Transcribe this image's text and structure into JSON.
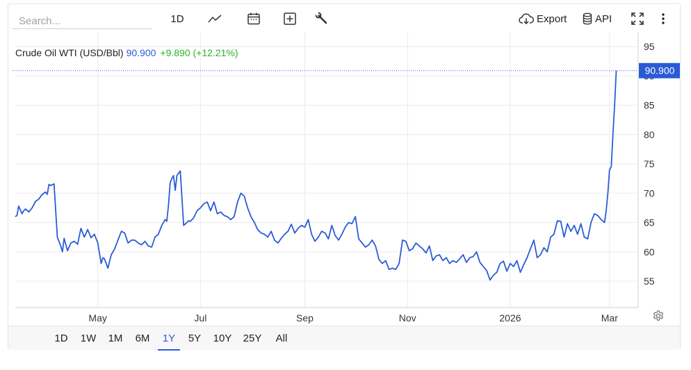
{
  "toolbar": {
    "search_placeholder": "Search...",
    "interval_label": "1D",
    "export_label": "Export",
    "api_label": "API"
  },
  "legend": {
    "name": "Crude Oil WTI (USD/Bbl)",
    "price": "90.900",
    "change": "+9.890 (+12.21%)"
  },
  "price_tag": "90.900",
  "ranges": [
    "1D",
    "1W",
    "1M",
    "6M",
    "1Y",
    "5Y",
    "10Y",
    "25Y",
    "All"
  ],
  "active_range": "1Y",
  "colors": {
    "line": "#2a5bd7",
    "up": "#2bb22b",
    "grid": "#ebebeb"
  },
  "chart_data": {
    "type": "line",
    "title": "",
    "xlabel": "",
    "ylabel": "",
    "y_axis_side": "right",
    "ylim": [
      50.5,
      97.5
    ],
    "yticks": [
      55,
      60,
      65,
      70,
      75,
      80,
      85,
      90,
      95
    ],
    "xlim": [
      "2025-03-13",
      "2026-03-18"
    ],
    "xticks": [
      {
        "label": "May",
        "date": "2025-05-01"
      },
      {
        "label": "Jul",
        "date": "2025-07-01"
      },
      {
        "label": "Sep",
        "date": "2025-09-01"
      },
      {
        "label": "Nov",
        "date": "2025-11-01"
      },
      {
        "label": "2026",
        "date": "2026-01-01"
      },
      {
        "label": "Mar",
        "date": "2026-03-01"
      }
    ],
    "grid": true,
    "series": [
      {
        "x": [
          "2025-03-13",
          "2025-03-14",
          "2025-03-15",
          "2025-03-17",
          "2025-03-18",
          "2025-03-19",
          "2025-03-21",
          "2025-03-23",
          "2025-03-25",
          "2025-03-27",
          "2025-03-29",
          "2025-03-31",
          "2025-04-01",
          "2025-04-02",
          "2025-04-03",
          "2025-04-05",
          "2025-04-07",
          "2025-04-09",
          "2025-04-10",
          "2025-04-11",
          "2025-04-13",
          "2025-04-15",
          "2025-04-17",
          "2025-04-19",
          "2025-04-21",
          "2025-04-23",
          "2025-04-25",
          "2025-04-27",
          "2025-04-29",
          "2025-05-01",
          "2025-05-03",
          "2025-05-04",
          "2025-05-05",
          "2025-05-07",
          "2025-05-09",
          "2025-05-11",
          "2025-05-13",
          "2025-05-15",
          "2025-05-17",
          "2025-05-19",
          "2025-05-21",
          "2025-05-23",
          "2025-05-25",
          "2025-05-27",
          "2025-05-29",
          "2025-05-31",
          "2025-06-02",
          "2025-06-04",
          "2025-06-06",
          "2025-06-08",
          "2025-06-10",
          "2025-06-11",
          "2025-06-12",
          "2025-06-13",
          "2025-06-14",
          "2025-06-15",
          "2025-06-16",
          "2025-06-17",
          "2025-06-19",
          "2025-06-21",
          "2025-06-23",
          "2025-06-24",
          "2025-06-25",
          "2025-06-27",
          "2025-06-29",
          "2025-07-01",
          "2025-07-03",
          "2025-07-05",
          "2025-07-07",
          "2025-07-09",
          "2025-07-11",
          "2025-07-13",
          "2025-07-15",
          "2025-07-17",
          "2025-07-19",
          "2025-07-21",
          "2025-07-23",
          "2025-07-25",
          "2025-07-27",
          "2025-07-29",
          "2025-07-31",
          "2025-08-02",
          "2025-08-04",
          "2025-08-06",
          "2025-08-08",
          "2025-08-10",
          "2025-08-12",
          "2025-08-14",
          "2025-08-16",
          "2025-08-18",
          "2025-08-20",
          "2025-08-22",
          "2025-08-24",
          "2025-08-26",
          "2025-08-28",
          "2025-08-30",
          "2025-09-01",
          "2025-09-03",
          "2025-09-05",
          "2025-09-07",
          "2025-09-09",
          "2025-09-11",
          "2025-09-13",
          "2025-09-15",
          "2025-09-17",
          "2025-09-19",
          "2025-09-21",
          "2025-09-23",
          "2025-09-25",
          "2025-09-27",
          "2025-09-29",
          "2025-10-01",
          "2025-10-03",
          "2025-10-05",
          "2025-10-07",
          "2025-10-09",
          "2025-10-11",
          "2025-10-13",
          "2025-10-15",
          "2025-10-17",
          "2025-10-19",
          "2025-10-21",
          "2025-10-23",
          "2025-10-25",
          "2025-10-27",
          "2025-10-29",
          "2025-10-31",
          "2025-11-02",
          "2025-11-04",
          "2025-11-06",
          "2025-11-08",
          "2025-11-10",
          "2025-11-12",
          "2025-11-14",
          "2025-11-16",
          "2025-11-18",
          "2025-11-20",
          "2025-11-22",
          "2025-11-24",
          "2025-11-26",
          "2025-11-28",
          "2025-11-30",
          "2025-12-02",
          "2025-12-04",
          "2025-12-06",
          "2025-12-08",
          "2025-12-10",
          "2025-12-12",
          "2025-12-14",
          "2025-12-16",
          "2025-12-18",
          "2025-12-20",
          "2025-12-22",
          "2025-12-24",
          "2025-12-26",
          "2025-12-28",
          "2025-12-30",
          "2026-01-01",
          "2026-01-03",
          "2026-01-05",
          "2026-01-07",
          "2026-01-09",
          "2026-01-11",
          "2026-01-13",
          "2026-01-15",
          "2026-01-17",
          "2026-01-19",
          "2026-01-21",
          "2026-01-23",
          "2026-01-25",
          "2026-01-27",
          "2026-01-29",
          "2026-01-31",
          "2026-02-02",
          "2026-02-04",
          "2026-02-06",
          "2026-02-08",
          "2026-02-10",
          "2026-02-12",
          "2026-02-14",
          "2026-02-16",
          "2026-02-18",
          "2026-02-20",
          "2026-02-22",
          "2026-02-24",
          "2026-02-26",
          "2026-02-27",
          "2026-02-28",
          "2026-03-01",
          "2026-03-02",
          "2026-03-03",
          "2026-03-04",
          "2026-03-05"
        ],
        "values": [
          66.0,
          66.2,
          67.8,
          66.5,
          67.0,
          67.3,
          66.8,
          67.5,
          68.6,
          69.0,
          69.8,
          70.2,
          69.8,
          71.5,
          71.3,
          71.6,
          62.5,
          61.0,
          60.0,
          62.3,
          60.2,
          61.5,
          61.8,
          61.3,
          64.0,
          62.5,
          63.8,
          62.4,
          63.0,
          61.5,
          58.0,
          59.0,
          58.8,
          57.2,
          59.5,
          60.5,
          62.0,
          63.5,
          63.2,
          61.5,
          62.0,
          62.0,
          61.5,
          61.2,
          61.8,
          61.0,
          60.8,
          62.5,
          63.0,
          64.5,
          65.5,
          65.2,
          68.0,
          71.8,
          72.5,
          73.0,
          70.5,
          73.0,
          73.8,
          64.5,
          65.0,
          65.3,
          65.2,
          65.8,
          67.0,
          67.5,
          68.2,
          68.5,
          67.0,
          68.5,
          66.5,
          66.8,
          66.2,
          66.0,
          65.5,
          66.0,
          68.5,
          70.0,
          69.5,
          67.5,
          66.0,
          65.0,
          63.8,
          63.2,
          63.0,
          62.5,
          63.5,
          62.0,
          61.5,
          62.3,
          63.0,
          63.5,
          64.7,
          63.2,
          64.0,
          64.5,
          64.2,
          65.5,
          63.0,
          61.8,
          62.5,
          63.5,
          63.2,
          62.2,
          64.5,
          62.8,
          62.0,
          63.0,
          64.2,
          65.0,
          64.8,
          66.0,
          62.2,
          61.5,
          60.8,
          61.2,
          62.0,
          61.0,
          58.7,
          58.0,
          58.5,
          57.0,
          57.2,
          57.0,
          58.0,
          62.0,
          61.8,
          60.2,
          60.5,
          61.5,
          61.0,
          60.5,
          59.8,
          61.0,
          58.5,
          59.3,
          59.5,
          58.5,
          59.0,
          58.0,
          58.5,
          58.2,
          58.8,
          59.5,
          58.2,
          59.0,
          59.2,
          60.0,
          58.2,
          57.5,
          56.8,
          55.2,
          56.0,
          56.5,
          58.0,
          58.4,
          56.7,
          58.0,
          57.5,
          58.5,
          56.5,
          57.8,
          59.0,
          60.5,
          62.0,
          59.0,
          59.5,
          60.7,
          60.0,
          62.5,
          63.0,
          65.3,
          65.2,
          62.5,
          64.8,
          63.5,
          64.5,
          63.0,
          64.8,
          62.5,
          62.2,
          65.0,
          66.5,
          66.2,
          65.5,
          65.0,
          67.0,
          70.0,
          74.0,
          74.5,
          80.0,
          85.0,
          90.9
        ]
      }
    ]
  }
}
